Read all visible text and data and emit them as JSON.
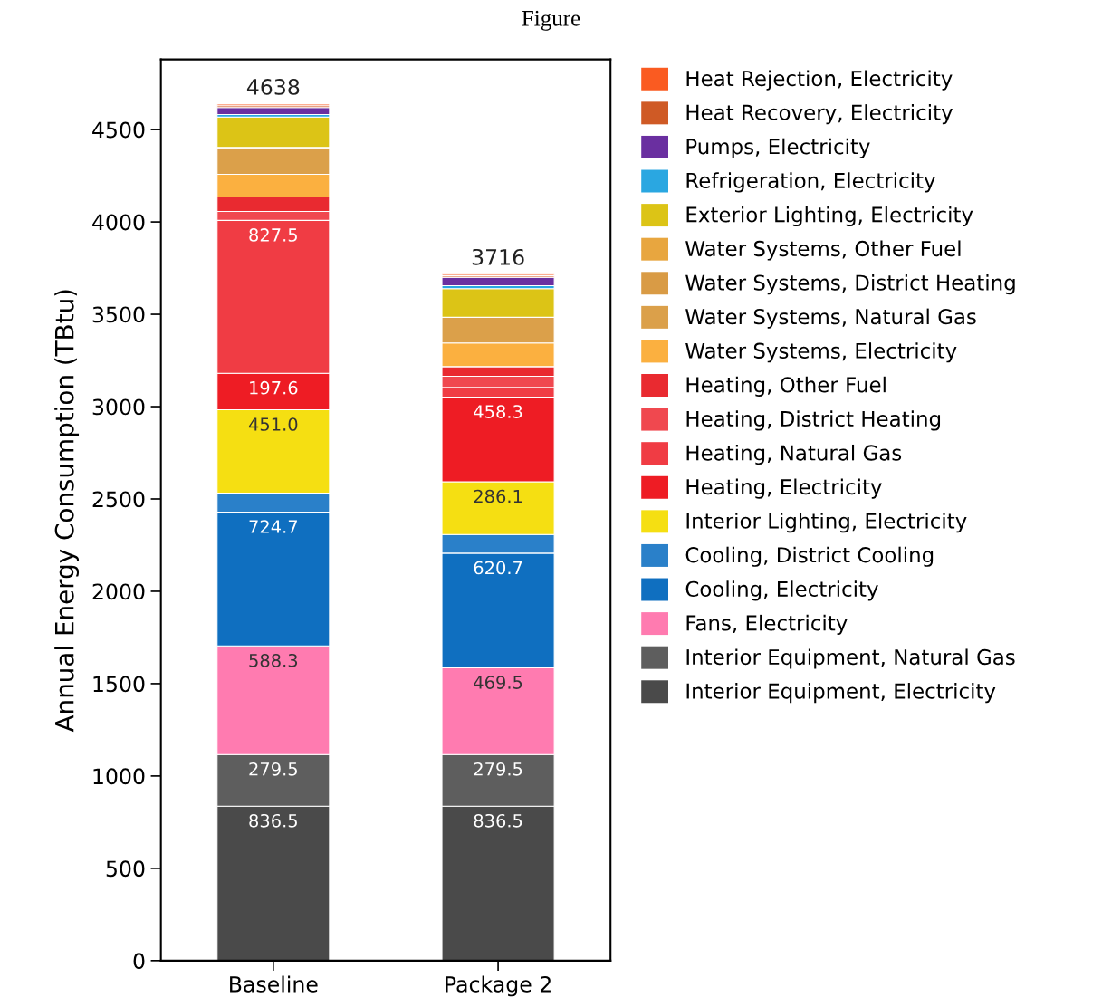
{
  "chart_data": {
    "type": "bar",
    "stacked": true,
    "title": "Figure",
    "ylabel": "Annual Energy Consumption (TBtu)",
    "categories": [
      "Baseline",
      "Package 2"
    ],
    "ylim": [
      0,
      4880
    ],
    "yticks": [
      0,
      500,
      1000,
      1500,
      2000,
      2500,
      3000,
      3500,
      4000,
      4500
    ],
    "grid": false,
    "legend": "right",
    "totals": [
      "4638",
      "3716"
    ],
    "series": [
      {
        "name": "Interior Equipment, Electricity",
        "color": "#4a4a4a",
        "values": [
          836.5,
          836.5
        ],
        "value_labels": [
          "836.5",
          "836.5"
        ]
      },
      {
        "name": "Interior Equipment, Natural Gas",
        "color": "#5e5e5e",
        "values": [
          279.5,
          279.5
        ],
        "value_labels": [
          "279.5",
          "279.5"
        ]
      },
      {
        "name": "Fans, Electricity",
        "color": "#ff7bb0",
        "values": [
          588.3,
          469.5
        ],
        "value_labels": [
          "588.3",
          "469.5"
        ]
      },
      {
        "name": "Cooling, Electricity",
        "color": "#0f6fc0",
        "values": [
          724.7,
          620.7
        ],
        "value_labels": [
          "724.7",
          "620.7"
        ]
      },
      {
        "name": "Cooling, District Cooling",
        "color": "#2a80c9",
        "values": [
          103,
          101
        ],
        "value_labels": [
          null,
          null
        ]
      },
      {
        "name": "Interior Lighting, Electricity",
        "color": "#f5df12",
        "values": [
          451.0,
          286.1
        ],
        "value_labels": [
          "451.0",
          "286.1"
        ]
      },
      {
        "name": "Heating, Electricity",
        "color": "#ee1c24",
        "values": [
          197.6,
          458.3
        ],
        "value_labels": [
          "197.6",
          "458.3"
        ]
      },
      {
        "name": "Heating, Natural Gas",
        "color": "#f03c44",
        "values": [
          827.5,
          52
        ],
        "value_labels": [
          "827.5",
          null
        ]
      },
      {
        "name": "Heating, District Heating",
        "color": "#f0484f",
        "values": [
          49,
          61
        ],
        "value_labels": [
          null,
          null
        ]
      },
      {
        "name": "Heating, Other Fuel",
        "color": "#e92a30",
        "values": [
          78,
          52
        ],
        "value_labels": [
          null,
          null
        ]
      },
      {
        "name": "Water Systems, Electricity",
        "color": "#fbb040",
        "values": [
          123,
          128
        ],
        "value_labels": [
          null,
          null
        ]
      },
      {
        "name": "Water Systems, Natural Gas",
        "color": "#dba04a",
        "values": [
          145,
          139
        ],
        "value_labels": [
          null,
          null
        ]
      },
      {
        "name": "Water Systems, District Heating",
        "color": "#d99b45",
        "values": [
          0,
          0
        ],
        "value_labels": [
          null,
          null
        ]
      },
      {
        "name": "Water Systems, Other Fuel",
        "color": "#e8a63f",
        "values": [
          0,
          0
        ],
        "value_labels": [
          null,
          null
        ]
      },
      {
        "name": "Exterior Lighting, Electricity",
        "color": "#dcc416",
        "values": [
          165,
          155
        ],
        "value_labels": [
          null,
          null
        ]
      },
      {
        "name": "Refrigeration, Electricity",
        "color": "#2aa7e1",
        "values": [
          13,
          16
        ],
        "value_labels": [
          null,
          null
        ]
      },
      {
        "name": "Pumps, Electricity",
        "color": "#6a2fa0",
        "values": [
          38,
          46
        ],
        "value_labels": [
          null,
          null
        ]
      },
      {
        "name": "Heat Recovery, Electricity",
        "color": "#cf5a25",
        "values": [
          10,
          8
        ],
        "value_labels": [
          null,
          null
        ]
      },
      {
        "name": "Heat Rejection, Electricity",
        "color": "#fa5b21",
        "values": [
          9,
          8
        ],
        "value_labels": [
          null,
          null
        ]
      }
    ]
  }
}
